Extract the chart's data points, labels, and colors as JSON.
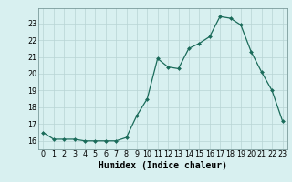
{
  "x": [
    0,
    1,
    2,
    3,
    4,
    5,
    6,
    7,
    8,
    9,
    10,
    11,
    12,
    13,
    14,
    15,
    16,
    17,
    18,
    19,
    20,
    21,
    22,
    23
  ],
  "y": [
    16.5,
    16.1,
    16.1,
    16.1,
    16.0,
    16.0,
    16.0,
    16.0,
    16.2,
    17.5,
    18.5,
    20.9,
    20.4,
    20.3,
    21.5,
    21.8,
    22.2,
    23.4,
    23.3,
    22.9,
    21.3,
    20.1,
    19.0,
    17.2
  ],
  "line_color": "#1a6b5a",
  "marker": "D",
  "marker_size": 2.0,
  "bg_color": "#d8f0f0",
  "grid_color": "#b8d4d4",
  "xlabel": "Humidex (Indice chaleur)",
  "xlim": [
    -0.5,
    23.5
  ],
  "ylim": [
    15.5,
    23.9
  ],
  "yticks": [
    16,
    17,
    18,
    19,
    20,
    21,
    22,
    23
  ],
  "xticks": [
    0,
    1,
    2,
    3,
    4,
    5,
    6,
    7,
    8,
    9,
    10,
    11,
    12,
    13,
    14,
    15,
    16,
    17,
    18,
    19,
    20,
    21,
    22,
    23
  ],
  "tick_fontsize": 5.8,
  "xlabel_fontsize": 7.0,
  "line_width": 0.9
}
